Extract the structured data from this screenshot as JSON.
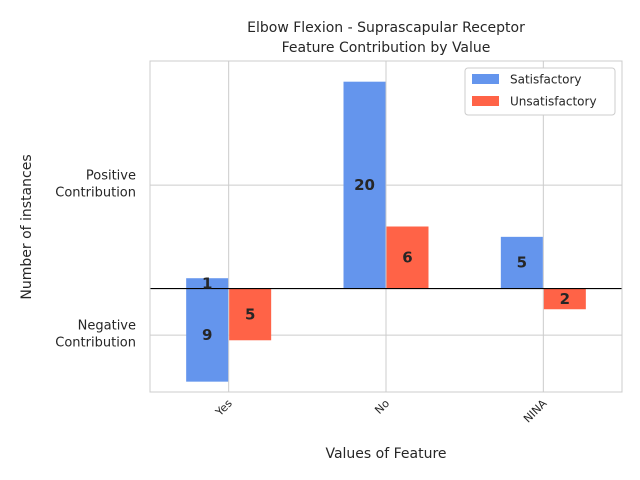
{
  "chart_data": {
    "type": "bar",
    "title": [
      "Elbow Flexion - Suprascapular Receptor",
      "Feature Contribution by Value"
    ],
    "xlabel": "Values of Feature",
    "ylabel": "Number of instances",
    "categories": [
      "Yes",
      "No",
      "NINA"
    ],
    "ytick_labels": [
      {
        "value": 10,
        "lines": [
          "Positive",
          "Contribution"
        ]
      },
      {
        "value": -4.5,
        "lines": [
          "Negative",
          "Contribution"
        ]
      }
    ],
    "ylim": [
      -10,
      22
    ],
    "grid": true,
    "legend_position": "top-right",
    "series": [
      {
        "name": "Satisfactory",
        "color": "#6495ED",
        "positive": [
          1,
          20,
          5
        ],
        "negative": [
          9,
          0,
          0
        ],
        "labels": [
          {
            "text": "1",
            "y": 0.5
          },
          {
            "text": "9",
            "y": -4.5
          },
          {
            "text": "20",
            "y": 10
          },
          {
            "text": "5",
            "y": 2.5
          }
        ]
      },
      {
        "name": "Unsatisfactory",
        "color": "#FF6347",
        "positive": [
          0,
          6,
          0
        ],
        "negative": [
          5,
          0,
          2
        ],
        "labels": [
          {
            "text": "5",
            "y": -2.5
          },
          {
            "text": "6",
            "y": 3
          },
          {
            "text": "2",
            "y": -1
          }
        ]
      }
    ]
  }
}
